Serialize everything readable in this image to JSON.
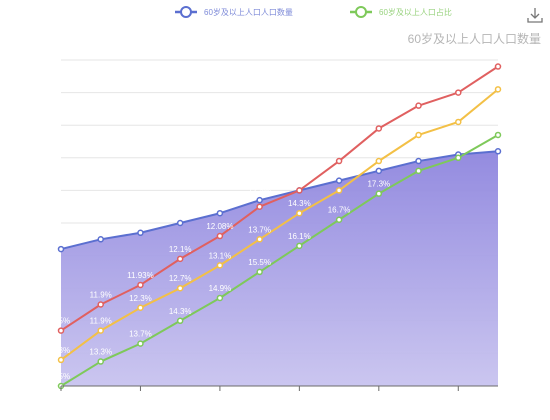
{
  "toolbar": {
    "download_icon": "download-icon"
  },
  "colors": {
    "population": "#5b6fd0",
    "population_area_top": "#8e85de",
    "population_area_bottom": "#c8c3ef",
    "ratio_green": "#7ec95a",
    "ratio_red": "#e06060",
    "ratio_yellow": "#f3c046",
    "grid": "#e6e6e6",
    "axis": "#6b6b6b"
  },
  "chart_data": {
    "type": "line",
    "title": "",
    "xlabel": "",
    "ylabel": "60岁及以上人口人口数量",
    "categories": [
      "",
      "",
      "",
      "",
      "",
      "",
      "",
      "",
      "",
      "",
      "",
      ""
    ],
    "ylim": [
      0,
      100
    ],
    "grid": true,
    "legend": "top-center",
    "series": [
      {
        "name": "60岁及以上人口人口数量",
        "kind": "area",
        "color_key": "population",
        "values": [
          42,
          45,
          47,
          50,
          53,
          57,
          60,
          63,
          66,
          69,
          71,
          72
        ],
        "labels": [
          "",
          "",
          "",
          "",
          "",
          "12.5%",
          "",
          "",
          "",
          "17.9%",
          "",
          ""
        ]
      },
      {
        "name": "60岁及以上人口占比",
        "color_key": "ratio_green",
        "values": [
          0,
          7.5,
          13,
          20,
          27,
          35,
          43,
          51,
          59,
          66,
          70,
          77
        ],
        "labels": [
          "8.5%",
          "13.3%",
          "13.7%",
          "14.3%",
          "14.9%",
          "15.5%",
          "16.1%",
          "16.7%",
          "17.3%",
          "",
          "",
          ""
        ]
      },
      {
        "name": "",
        "color_key": "ratio_red",
        "values": [
          17,
          25,
          31,
          39,
          46,
          55,
          60,
          69,
          79,
          86,
          90,
          98
        ],
        "labels": [
          "9.5%",
          "11.9%",
          "11.93%",
          "12.1%",
          "12.08%",
          "",
          "",
          "",
          "",
          "",
          "",
          ""
        ]
      },
      {
        "name": "",
        "color_key": "ratio_yellow",
        "values": [
          8,
          17,
          24,
          30,
          37,
          45,
          53,
          60,
          69,
          77,
          81,
          91
        ],
        "labels": [
          "9.3%",
          "11.9%",
          "12.3%",
          "12.7%",
          "13.1%",
          "13.7%",
          "14.3%",
          "",
          "",
          "",
          "",
          ""
        ]
      }
    ]
  }
}
